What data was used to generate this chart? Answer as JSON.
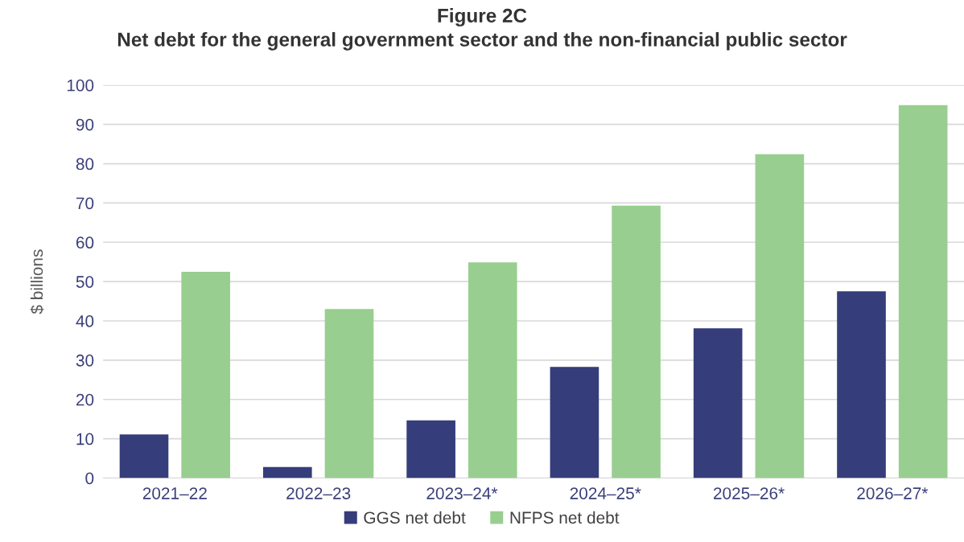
{
  "chart_data": {
    "type": "bar",
    "title": "Figure 2C\nNet debt for the general government sector and the non-financial public sector",
    "ylabel": "$ billions",
    "categories": [
      "2021–22",
      "2022–23",
      "2023–24*",
      "2024–25*",
      "2025–26*",
      "2026–27*"
    ],
    "series": [
      {
        "name": "GGS net debt",
        "color": "#353d7a",
        "values": [
          11.1,
          2.8,
          14.7,
          28.3,
          38.1,
          47.5
        ]
      },
      {
        "name": "NFPS net debt",
        "color": "#98ce8f",
        "values": [
          52.5,
          43.0,
          54.9,
          69.3,
          82.4,
          94.9
        ]
      }
    ],
    "ylim": [
      0,
      100
    ],
    "yticks": [
      0,
      10,
      20,
      30,
      40,
      50,
      60,
      70,
      80,
      90,
      100
    ],
    "grid": "y",
    "legend": "bottom"
  }
}
